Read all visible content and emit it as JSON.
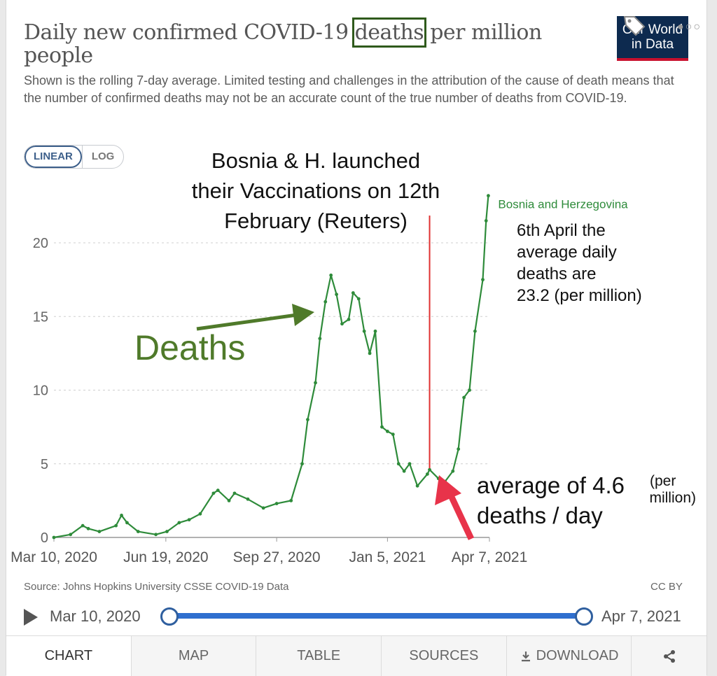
{
  "header": {
    "title_pre": "Daily new confirmed COVID-19 ",
    "title_highlight": "deaths",
    "title_post": " per million people",
    "subtitle": "Shown is the rolling 7-day average. Limited testing and challenges in the attribution of the cause of death means that the number of confirmed deaths may not be an accurate count of the true number of deaths from COVID-19.",
    "logo_line1": "Our World",
    "logo_line2": "in Data"
  },
  "scale_toggle": {
    "linear": "LINEAR",
    "log": "LOG",
    "selected": "LINEAR"
  },
  "annotations": {
    "vaccination": [
      "Bosnia & H. launched",
      "their Vaccinations on 12th",
      "February (Reuters)"
    ],
    "deaths_label": "Deaths",
    "april_note": [
      "6th April the",
      "average daily",
      "deaths are",
      "23.2 (per million)"
    ],
    "avg_main": [
      "average of 4.6",
      "deaths / day"
    ],
    "avg_small": [
      "(per",
      "million)"
    ]
  },
  "colors": {
    "series": "#2e8b3a",
    "deaths_annotation": "#4f7a2a",
    "vaccination_line": "#e03030",
    "red_arrow": "#e8334a",
    "timeline": "#2f6fcf"
  },
  "chart_data": {
    "type": "line",
    "title": "Daily new confirmed COVID-19 deaths per million people",
    "xlabel": "",
    "ylabel": "",
    "x_ticks": [
      "Mar 10, 2020",
      "Jun 19, 2020",
      "Sep 27, 2020",
      "Jan 5, 2021",
      "Apr 7, 2021"
    ],
    "y_ticks": [
      "0",
      "5",
      "10",
      "15",
      "20"
    ],
    "ylim": [
      0,
      24
    ],
    "xlim": [
      "2020-03-10",
      "2021-04-07"
    ],
    "grid": "horizontal-dotted",
    "scale": "linear",
    "series": [
      {
        "name": "Bosnia and Herzegovina",
        "x": [
          "2020-03-10",
          "2020-03-25",
          "2020-04-05",
          "2020-04-10",
          "2020-04-20",
          "2020-05-05",
          "2020-05-10",
          "2020-05-15",
          "2020-05-25",
          "2020-06-10",
          "2020-06-20",
          "2020-07-01",
          "2020-07-10",
          "2020-07-20",
          "2020-08-01",
          "2020-08-05",
          "2020-08-15",
          "2020-08-20",
          "2020-09-01",
          "2020-09-15",
          "2020-09-27",
          "2020-10-10",
          "2020-10-20",
          "2020-10-25",
          "2020-11-01",
          "2020-11-05",
          "2020-11-10",
          "2020-11-15",
          "2020-11-20",
          "2020-11-25",
          "2020-12-01",
          "2020-12-05",
          "2020-12-10",
          "2020-12-15",
          "2020-12-20",
          "2020-12-25",
          "2020-12-31",
          "2021-01-05",
          "2021-01-10",
          "2021-01-15",
          "2021-01-20",
          "2021-01-25",
          "2021-02-01",
          "2021-02-10",
          "2021-02-12",
          "2021-02-20",
          "2021-02-26",
          "2021-03-05",
          "2021-03-10",
          "2021-03-15",
          "2021-03-20",
          "2021-03-25",
          "2021-04-01",
          "2021-04-04",
          "2021-04-06"
        ],
        "y": [
          0.0,
          0.2,
          0.8,
          0.6,
          0.4,
          0.8,
          1.5,
          1.0,
          0.4,
          0.2,
          0.4,
          1.0,
          1.2,
          1.6,
          3.0,
          3.2,
          2.5,
          3.0,
          2.6,
          2.0,
          2.3,
          2.5,
          5.0,
          8.0,
          10.5,
          13.5,
          16.0,
          17.8,
          16.5,
          14.5,
          14.8,
          16.6,
          16.2,
          14.0,
          12.5,
          14.0,
          7.5,
          7.2,
          7.0,
          5.0,
          4.5,
          5.0,
          3.5,
          4.3,
          4.6,
          4.0,
          3.8,
          4.5,
          6.0,
          9.5,
          10.0,
          14.0,
          17.5,
          21.5,
          23.2
        ]
      }
    ]
  },
  "footer": {
    "source": "Source: Johns Hopkins University CSSE COVID-19 Data",
    "license": "CC BY",
    "timeline_start": "Mar 10, 2020",
    "timeline_end": "Apr 7, 2021"
  },
  "tabs": [
    {
      "label": "CHART",
      "icon": ""
    },
    {
      "label": "MAP",
      "icon": ""
    },
    {
      "label": "TABLE",
      "icon": ""
    },
    {
      "label": "SOURCES",
      "icon": ""
    },
    {
      "label": "DOWNLOAD",
      "icon": "download-icon"
    },
    {
      "label": "",
      "icon": "share-icon"
    }
  ]
}
